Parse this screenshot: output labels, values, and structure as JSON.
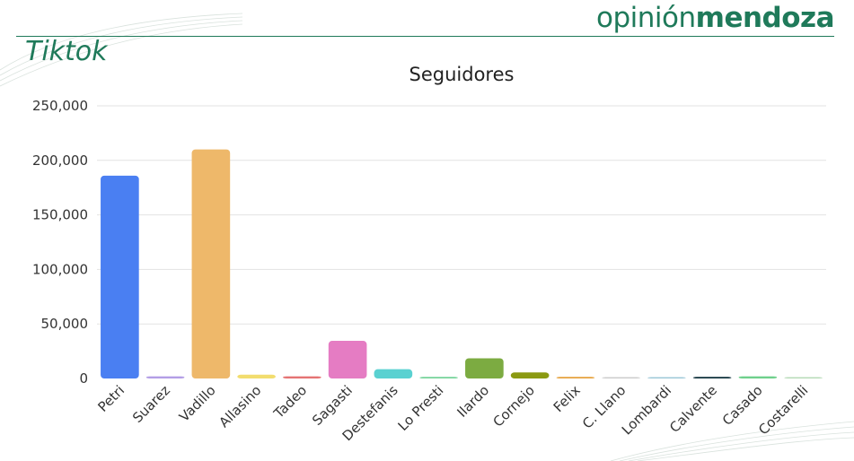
{
  "header": {
    "brand_light": "opinión",
    "brand_bold": "mendoza",
    "section_title": "Tiktok"
  },
  "colors": {
    "brand": "#1f7a5a",
    "grid": "#e3e3e3",
    "bars": [
      "#4a7ff2",
      "#b39ee6",
      "#eeb86a",
      "#f2dd6e",
      "#e57373",
      "#e57cc3",
      "#5ad1d1",
      "#7ed6a0",
      "#7cab41",
      "#8b9a12",
      "#e8a84a",
      "#cccccc",
      "#9ec8d8",
      "#1e3e48",
      "#6fd08c",
      "#b7dbb8"
    ]
  },
  "chart_data": {
    "type": "bar",
    "title": "Seguidores",
    "categories": [
      "Petri",
      "Suarez",
      "Vadillo",
      "Allasino",
      "Tadeo",
      "Sagasti",
      "Destefanis",
      "Lo Presti",
      "Ilardo",
      "Cornejo",
      "Felix",
      "C. Llano",
      "Lombardi",
      "Calvente",
      "Casado",
      "Costarelli"
    ],
    "values": [
      186000,
      2000,
      210000,
      3500,
      2000,
      34500,
      8500,
      1500,
      18500,
      5500,
      1500,
      600,
      300,
      1500,
      2000,
      400
    ],
    "yticks": [
      "0",
      "50,000",
      "100,000",
      "150,000",
      "200,000",
      "250,000"
    ],
    "ylim": [
      0,
      250000
    ],
    "grid": true,
    "legend": "none"
  }
}
